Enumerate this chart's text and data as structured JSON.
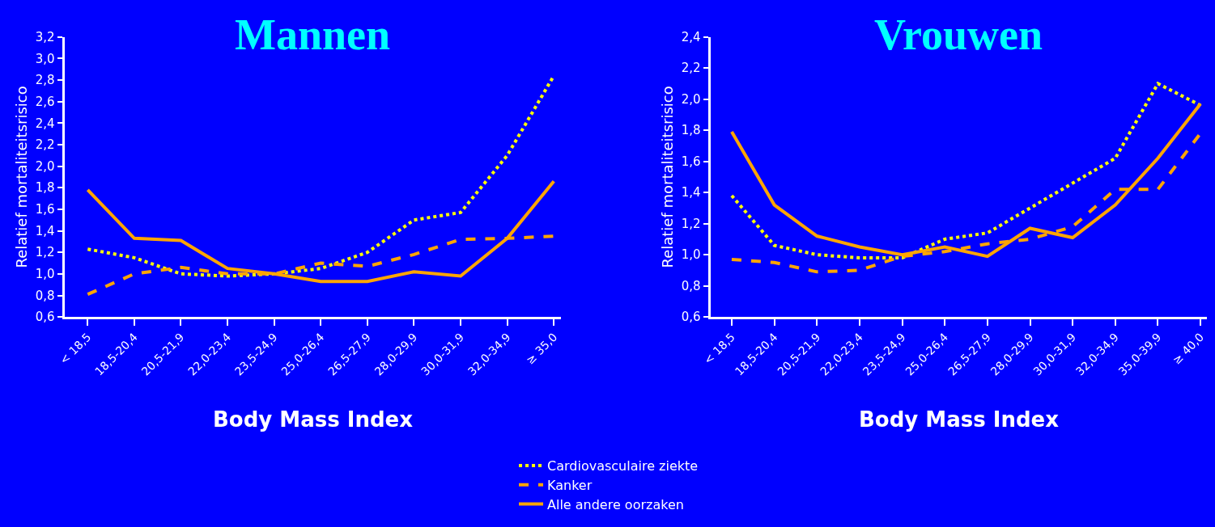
{
  "chart_data": [
    {
      "type": "line",
      "title": "Mannen",
      "xlabel": "Body Mass Index",
      "ylabel": "Relatief mortaliteitsrisico",
      "categories": [
        "< 18,5",
        "18,5-20,4",
        "20,5-21,9",
        "22,0-23,4",
        "23,5-24,9",
        "25,0-26,4",
        "26,5-27,9",
        "28,0-29,9",
        "30,0-31,9",
        "32,0-34,9",
        "≥ 35,0"
      ],
      "series": [
        {
          "name": "Cardiovasculaire ziekte",
          "color": "#ffff00",
          "line_style": "dotted",
          "values": [
            1.23,
            1.15,
            1.0,
            0.98,
            1.0,
            1.05,
            1.2,
            1.5,
            1.57,
            2.1,
            2.84
          ]
        },
        {
          "name": "Kanker",
          "color": "#ffa500",
          "line_style": "dashed",
          "values": [
            0.81,
            1.0,
            1.06,
            1.0,
            1.0,
            1.1,
            1.07,
            1.18,
            1.32,
            1.33,
            1.35
          ]
        },
        {
          "name": "Alle andere oorzaken",
          "color": "#ffa500",
          "line_style": "solid",
          "values": [
            1.78,
            1.33,
            1.31,
            1.05,
            1.0,
            0.93,
            0.93,
            1.02,
            0.98,
            1.33,
            1.86
          ]
        }
      ],
      "ylim": [
        0.6,
        3.2
      ],
      "yticks": [
        {
          "value": 0.6,
          "label": "0,6"
        },
        {
          "value": 0.8,
          "label": "0,8"
        },
        {
          "value": 1.0,
          "label": "1,0"
        },
        {
          "value": 1.2,
          "label": "1,2"
        },
        {
          "value": 1.4,
          "label": "1,4"
        },
        {
          "value": 1.6,
          "label": "1,6"
        },
        {
          "value": 1.8,
          "label": "1,8"
        },
        {
          "value": 2.0,
          "label": "2,0"
        },
        {
          "value": 2.2,
          "label": "2,2"
        },
        {
          "value": 2.4,
          "label": "2,4"
        },
        {
          "value": 2.6,
          "label": "2,6"
        },
        {
          "value": 2.8,
          "label": "2,8"
        },
        {
          "value": 3.0,
          "label": "3,0"
        },
        {
          "value": 3.2,
          "label": "3,2"
        }
      ],
      "grid": false,
      "marker": "none",
      "legend": "bottom"
    },
    {
      "type": "line",
      "title": "Vrouwen",
      "xlabel": "Body Mass Index",
      "ylabel": "Relatief mortaliteitsrisico",
      "categories": [
        "< 18,5",
        "18,5-20,4",
        "20,5-21,9",
        "22,0-23,4",
        "23,5-24,9",
        "25,0-26,4",
        "26,5-27,9",
        "28,0-29,9",
        "30,0-31,9",
        "32,0-34,9",
        "35,0-39,9",
        "≥ 40,0"
      ],
      "series": [
        {
          "color": "#ffff00",
          "line_style": "dotted",
          "values": [
            1.38,
            1.06,
            1.0,
            0.98,
            0.98,
            1.1,
            1.14,
            1.3,
            1.46,
            1.62,
            2.1,
            1.96
          ]
        },
        {
          "color": "#ffa500",
          "line_style": "dashed",
          "values": [
            0.97,
            0.95,
            0.89,
            0.9,
            0.99,
            1.02,
            1.07,
            1.1,
            1.18,
            1.42,
            1.42,
            1.78
          ]
        },
        {
          "color": "#ffa500",
          "line_style": "solid",
          "values": [
            1.79,
            1.32,
            1.12,
            1.05,
            1.0,
            1.05,
            0.99,
            1.17,
            1.11,
            1.32,
            1.62,
            1.97
          ]
        }
      ],
      "ylim": [
        0.6,
        2.4
      ],
      "yticks": [
        {
          "value": 0.6,
          "label": "0,6"
        },
        {
          "value": 0.8,
          "label": "0,8"
        },
        {
          "value": 1.0,
          "label": "1,0"
        },
        {
          "value": 1.2,
          "label": "1,2"
        },
        {
          "value": 1.4,
          "label": "1,4"
        },
        {
          "value": 1.6,
          "label": "1,6"
        },
        {
          "value": 1.8,
          "label": "1,8"
        },
        {
          "value": 2.0,
          "label": "2,0"
        },
        {
          "value": 2.2,
          "label": "2,2"
        },
        {
          "value": 2.4,
          "label": "2,4"
        }
      ],
      "grid": false,
      "marker": "none"
    }
  ]
}
